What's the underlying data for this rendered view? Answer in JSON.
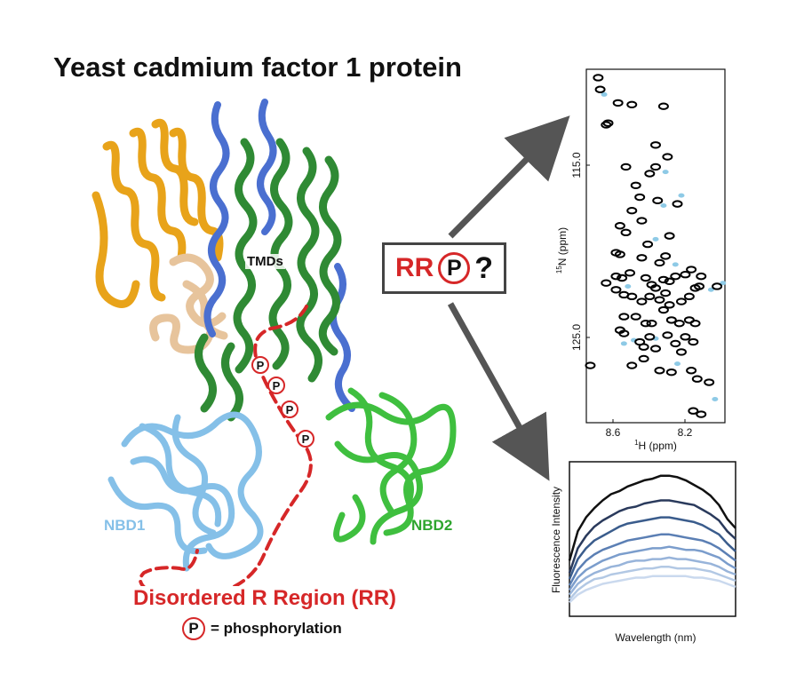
{
  "title": "Yeast cadmium factor 1 protein",
  "labels": {
    "tmds": "TMDs",
    "nbd1": "NBD1",
    "nbd2": "NBD2",
    "rr_title": "Disordered R Region (RR)",
    "p_symbol": "P",
    "legend_text": "= phosphorylation",
    "question_box": {
      "rr": "RR",
      "p": "P",
      "q": "?"
    }
  },
  "colors": {
    "title": "#111111",
    "rr_red": "#d62728",
    "nbd1": "#85c0e8",
    "nbd2": "#2ea52e",
    "tmd_blue": "#4a6fd0",
    "tmd_green": "#2f8a34",
    "orange_domain": "#e8a31a",
    "tan_domain": "#e7c49c",
    "arrow": "#555555"
  },
  "nmr_panel": {
    "x_ticks": [
      "8.6",
      "8.2"
    ],
    "y_ticks": [
      "115.0",
      "125.0"
    ],
    "xlabel_sup": "1",
    "xlabel": "H (ppm)",
    "ylabel_sup": "15",
    "ylabel": "N (ppm)"
  },
  "fluorescence_panel": {
    "xlabel": "Wavelength (nm)",
    "ylabel": "Fluorescence Intensity"
  },
  "chart_data": [
    {
      "type": "scatter",
      "xlim": [
        8.75,
        8.05
      ],
      "ylim": [
        108.5,
        129.5
      ],
      "points_black": [
        [
          8.69,
          109.0
        ],
        [
          8.68,
          109.7
        ],
        [
          8.59,
          110.5
        ],
        [
          8.52,
          110.6
        ],
        [
          8.36,
          110.7
        ],
        [
          8.64,
          111.7
        ],
        [
          8.65,
          111.8
        ],
        [
          8.4,
          113.0
        ],
        [
          8.34,
          113.7
        ],
        [
          8.4,
          114.3
        ],
        [
          8.55,
          114.3
        ],
        [
          8.43,
          114.7
        ],
        [
          8.5,
          115.4
        ],
        [
          8.48,
          116.1
        ],
        [
          8.39,
          116.3
        ],
        [
          8.29,
          116.5
        ],
        [
          8.52,
          116.9
        ],
        [
          8.47,
          117.5
        ],
        [
          8.58,
          117.8
        ],
        [
          8.55,
          118.2
        ],
        [
          8.44,
          118.9
        ],
        [
          8.33,
          118.4
        ],
        [
          8.58,
          119.5
        ],
        [
          8.6,
          119.4
        ],
        [
          8.47,
          119.7
        ],
        [
          8.35,
          119.6
        ],
        [
          8.38,
          120.0
        ],
        [
          8.6,
          120.8
        ],
        [
          8.57,
          120.9
        ],
        [
          8.53,
          120.6
        ],
        [
          8.45,
          120.9
        ],
        [
          8.42,
          121.3
        ],
        [
          8.4,
          121.5
        ],
        [
          8.35,
          121.8
        ],
        [
          8.36,
          121.0
        ],
        [
          8.33,
          121.1
        ],
        [
          8.3,
          120.8
        ],
        [
          8.25,
          120.7
        ],
        [
          8.22,
          120.4
        ],
        [
          8.17,
          120.8
        ],
        [
          8.09,
          121.4
        ],
        [
          8.65,
          121.2
        ],
        [
          8.6,
          121.6
        ],
        [
          8.56,
          121.9
        ],
        [
          8.52,
          122.0
        ],
        [
          8.47,
          122.3
        ],
        [
          8.43,
          122.0
        ],
        [
          8.38,
          122.2
        ],
        [
          8.36,
          122.8
        ],
        [
          8.33,
          122.5
        ],
        [
          8.27,
          122.3
        ],
        [
          8.23,
          122.0
        ],
        [
          8.2,
          121.5
        ],
        [
          8.18,
          121.4
        ],
        [
          8.56,
          123.2
        ],
        [
          8.5,
          123.2
        ],
        [
          8.45,
          123.6
        ],
        [
          8.42,
          123.6
        ],
        [
          8.32,
          123.4
        ],
        [
          8.28,
          123.6
        ],
        [
          8.23,
          123.4
        ],
        [
          8.2,
          123.6
        ],
        [
          8.58,
          124.0
        ],
        [
          8.56,
          124.2
        ],
        [
          8.48,
          124.7
        ],
        [
          8.46,
          125.0
        ],
        [
          8.43,
          124.4
        ],
        [
          8.4,
          125.1
        ],
        [
          8.34,
          124.3
        ],
        [
          8.3,
          124.8
        ],
        [
          8.27,
          125.3
        ],
        [
          8.25,
          124.4
        ],
        [
          8.21,
          124.7
        ],
        [
          8.73,
          126.1
        ],
        [
          8.52,
          126.1
        ],
        [
          8.46,
          125.7
        ],
        [
          8.38,
          126.4
        ],
        [
          8.32,
          126.5
        ],
        [
          8.22,
          126.4
        ],
        [
          8.19,
          126.9
        ],
        [
          8.13,
          127.1
        ],
        [
          8.21,
          128.8
        ],
        [
          8.17,
          129.0
        ]
      ],
      "points_blue": [
        [
          8.66,
          110.0
        ],
        [
          8.35,
          114.6
        ],
        [
          8.27,
          116.0
        ],
        [
          8.36,
          116.6
        ],
        [
          8.4,
          118.6
        ],
        [
          8.3,
          120.1
        ],
        [
          8.54,
          121.4
        ],
        [
          8.12,
          121.6
        ],
        [
          8.06,
          121.2
        ],
        [
          8.4,
          124.5
        ],
        [
          8.51,
          124.6
        ],
        [
          8.56,
          124.8
        ],
        [
          8.29,
          126.0
        ],
        [
          8.1,
          128.1
        ]
      ]
    },
    {
      "type": "line",
      "x": [
        0.0,
        0.05,
        0.1,
        0.15,
        0.2,
        0.25,
        0.3,
        0.35,
        0.4,
        0.45,
        0.5,
        0.55,
        0.6,
        0.65,
        0.7,
        0.75,
        0.8,
        0.85,
        0.9,
        0.95,
        1.0
      ],
      "series": [
        {
          "color": "#111111",
          "values": [
            0.36,
            0.55,
            0.64,
            0.7,
            0.75,
            0.79,
            0.81,
            0.84,
            0.86,
            0.88,
            0.89,
            0.91,
            0.91,
            0.9,
            0.88,
            0.85,
            0.82,
            0.78,
            0.72,
            0.63,
            0.57
          ]
        },
        {
          "color": "#2a3a5c",
          "values": [
            0.28,
            0.44,
            0.52,
            0.58,
            0.62,
            0.65,
            0.68,
            0.7,
            0.71,
            0.73,
            0.74,
            0.75,
            0.75,
            0.74,
            0.73,
            0.72,
            0.69,
            0.66,
            0.62,
            0.55,
            0.5
          ]
        },
        {
          "color": "#3a5c8c",
          "values": [
            0.24,
            0.37,
            0.44,
            0.49,
            0.52,
            0.55,
            0.58,
            0.6,
            0.61,
            0.62,
            0.63,
            0.64,
            0.64,
            0.63,
            0.62,
            0.61,
            0.59,
            0.56,
            0.53,
            0.47,
            0.42
          ]
        },
        {
          "color": "#5b7fb4",
          "values": [
            0.2,
            0.3,
            0.36,
            0.4,
            0.43,
            0.45,
            0.47,
            0.49,
            0.5,
            0.51,
            0.52,
            0.53,
            0.53,
            0.52,
            0.51,
            0.5,
            0.49,
            0.47,
            0.44,
            0.4,
            0.36
          ]
        },
        {
          "color": "#7b9dcc",
          "values": [
            0.17,
            0.25,
            0.3,
            0.33,
            0.36,
            0.38,
            0.4,
            0.41,
            0.42,
            0.43,
            0.44,
            0.44,
            0.45,
            0.44,
            0.43,
            0.43,
            0.42,
            0.4,
            0.38,
            0.34,
            0.31
          ]
        },
        {
          "color": "#98b4da",
          "values": [
            0.14,
            0.21,
            0.25,
            0.28,
            0.3,
            0.32,
            0.33,
            0.35,
            0.36,
            0.36,
            0.37,
            0.37,
            0.38,
            0.37,
            0.37,
            0.36,
            0.35,
            0.34,
            0.32,
            0.29,
            0.27
          ]
        },
        {
          "color": "#b2c8e4",
          "values": [
            0.11,
            0.17,
            0.21,
            0.24,
            0.25,
            0.27,
            0.28,
            0.29,
            0.3,
            0.31,
            0.31,
            0.32,
            0.32,
            0.31,
            0.31,
            0.31,
            0.3,
            0.29,
            0.27,
            0.25,
            0.23
          ]
        },
        {
          "color": "#cad9ee",
          "values": [
            0.09,
            0.14,
            0.17,
            0.19,
            0.21,
            0.22,
            0.23,
            0.24,
            0.25,
            0.25,
            0.26,
            0.26,
            0.26,
            0.26,
            0.26,
            0.25,
            0.25,
            0.24,
            0.23,
            0.21,
            0.19
          ]
        }
      ]
    }
  ]
}
